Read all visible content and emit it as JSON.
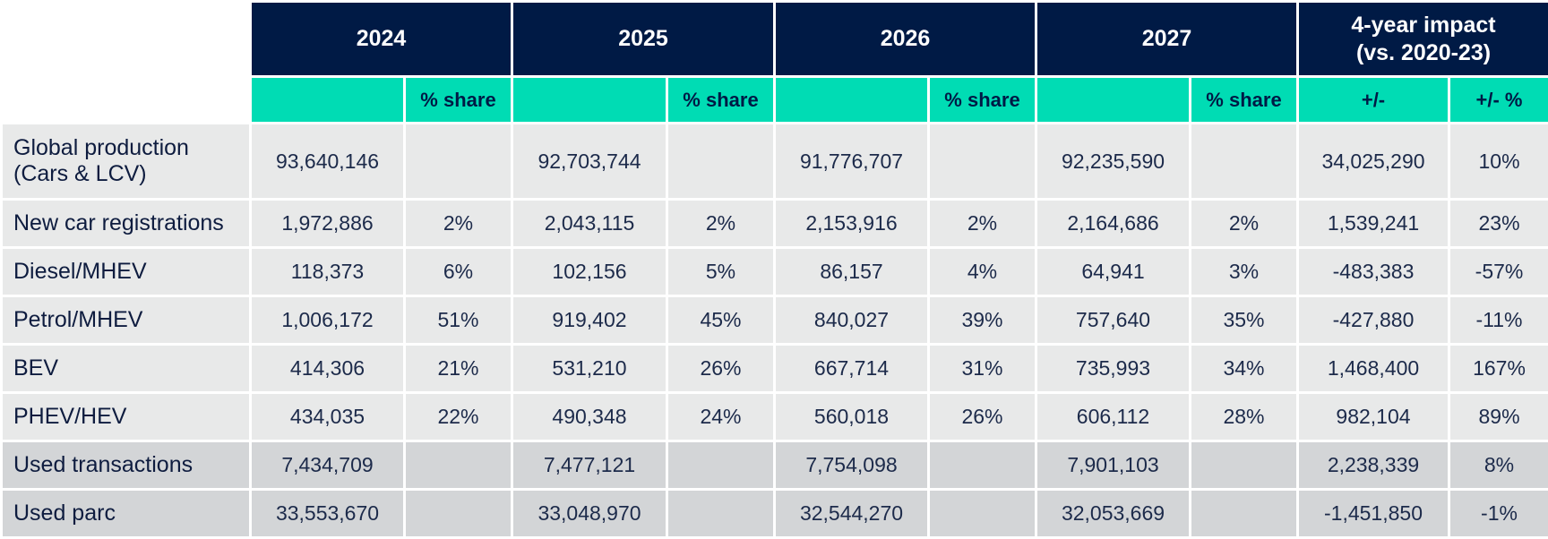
{
  "header": {
    "years": [
      "2024",
      "2025",
      "2026",
      "2027"
    ],
    "impact_line1": "4-year impact",
    "impact_line2": "(vs. 2020-23)",
    "share_label": "% share",
    "plusminus_label": "+/-",
    "plusminus_pct_label": "+/- %"
  },
  "rows": [
    {
      "label_line1": "Global production",
      "label_line2": "(Cars & LCV)",
      "values": [
        "93,640,146",
        "",
        "92,703,744",
        "",
        "91,776,707",
        "",
        "92,235,590",
        "",
        "34,025,290",
        "10%"
      ]
    },
    {
      "label": "New car registrations",
      "values": [
        "1,972,886",
        "2%",
        "2,043,115",
        "2%",
        "2,153,916",
        "2%",
        "2,164,686",
        "2%",
        "1,539,241",
        "23%"
      ]
    },
    {
      "label": "Diesel/MHEV",
      "values": [
        "118,373",
        "6%",
        "102,156",
        "5%",
        "86,157",
        "4%",
        "64,941",
        "3%",
        "-483,383",
        "-57%"
      ]
    },
    {
      "label": "Petrol/MHEV",
      "values": [
        "1,006,172",
        "51%",
        "919,402",
        "45%",
        "840,027",
        "39%",
        "757,640",
        "35%",
        "-427,880",
        "-11%"
      ]
    },
    {
      "label": "BEV",
      "values": [
        "414,306",
        "21%",
        "531,210",
        "26%",
        "667,714",
        "31%",
        "735,993",
        "34%",
        "1,468,400",
        "167%"
      ]
    },
    {
      "label": "PHEV/HEV",
      "values": [
        "434,035",
        "22%",
        "490,348",
        "24%",
        "560,018",
        "26%",
        "606,112",
        "28%",
        "982,104",
        "89%"
      ]
    },
    {
      "label": "Used transactions",
      "values": [
        "7,434,709",
        "",
        "7,477,121",
        "",
        "7,754,098",
        "",
        "7,901,103",
        "",
        "2,238,339",
        "8%"
      ]
    },
    {
      "label": "Used parc",
      "values": [
        "33,553,670",
        "",
        "33,048,970",
        "",
        "32,544,270",
        "",
        "32,053,669",
        "",
        "-1,451,850",
        "-1%"
      ]
    }
  ],
  "colors": {
    "header_navy": "#001a45",
    "subheader_teal": "#00dcb4",
    "row_light": "#e8e9e9",
    "row_dark": "#d3d5d7"
  }
}
